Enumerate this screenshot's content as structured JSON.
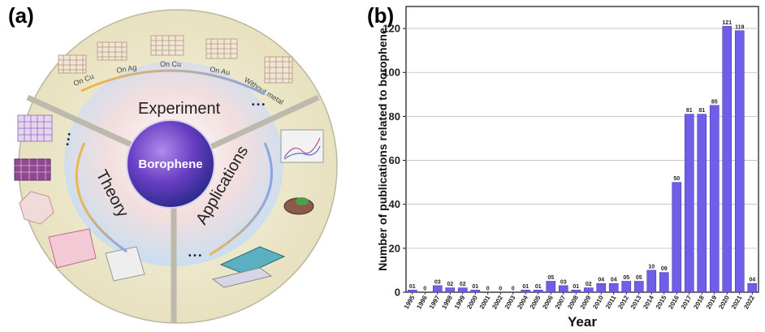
{
  "panel_a": {
    "label": "(a)",
    "center": "Borophene",
    "experiment": "Experiment",
    "theory": "Theory",
    "applications": "Applications",
    "substrates": [
      "On Cu",
      "On Ag",
      "On Cu",
      "On Au",
      "Without metal"
    ],
    "ellipsis": "• • •"
  },
  "panel_b": {
    "label": "(b)"
  },
  "chart_data": {
    "type": "bar",
    "xlabel": "Year",
    "ylabel": "Number of publications related to borophene",
    "ylim": [
      0,
      130
    ],
    "yticks": [
      0,
      20,
      40,
      60,
      80,
      100,
      120
    ],
    "grid": true,
    "color": "#6f5fe8",
    "categories": [
      "1995",
      "1996",
      "1997",
      "1998",
      "1999",
      "2000",
      "2001",
      "2002",
      "2003",
      "2004",
      "2005",
      "2006",
      "2007",
      "2008",
      "2009",
      "2010",
      "2011",
      "2012",
      "2013",
      "2014",
      "2015",
      "2016",
      "2017",
      "2018",
      "2019",
      "2020",
      "2021",
      "2022"
    ],
    "values": [
      1,
      0,
      3,
      2,
      2,
      1,
      0,
      0,
      0,
      1,
      1,
      5,
      3,
      1,
      2,
      4,
      4,
      5,
      5,
      10,
      9,
      50,
      81,
      81,
      85,
      121,
      119,
      4
    ],
    "data_labels": [
      "01",
      "0",
      "03",
      "02",
      "02",
      "01",
      "0",
      "0",
      "0",
      "01",
      "01",
      "05",
      "03",
      "01",
      "02",
      "04",
      "04",
      "05",
      "05",
      "10",
      "09",
      "50",
      "81",
      "81",
      "85",
      "121",
      "119",
      "04"
    ]
  }
}
